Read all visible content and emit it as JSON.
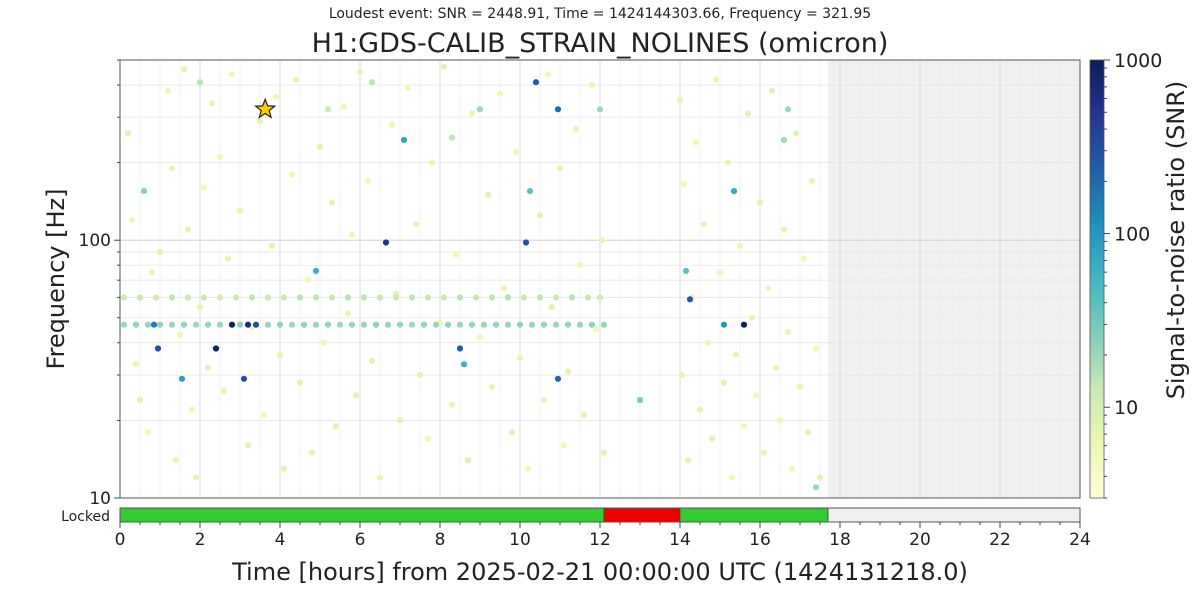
{
  "subtitle": "Loudest event: SNR = 2448.91, Time = 1424144303.66, Frequency = 321.95",
  "title": "H1:GDS-CALIB_STRAIN_NOLINES (omicron)",
  "chart_data": {
    "type": "scatter",
    "xlabel": "Time [hours] from 2025-02-21 00:00:00 UTC (1424131218.0)",
    "ylabel": "Frequency [Hz]",
    "xlim": [
      0,
      24
    ],
    "ylim": [
      10,
      500
    ],
    "y_scale": "log",
    "x_ticks": [
      "0",
      "2",
      "4",
      "6",
      "8",
      "10",
      "12",
      "14",
      "16",
      "18",
      "20",
      "22",
      "24"
    ],
    "y_ticks": [
      "10",
      "100"
    ],
    "grid": true,
    "colorbar": {
      "label": "Signal-to-noise ratio (SNR)",
      "scale": "log",
      "range": [
        3,
        1000
      ],
      "ticks": [
        "10",
        "100",
        "1000"
      ],
      "colors": [
        "#ffffd9",
        "#edf8b1",
        "#c7e9b4",
        "#7fcdbb",
        "#41b6c4",
        "#1d91c0",
        "#225ea8",
        "#253494",
        "#081d58"
      ]
    },
    "no_data_region": [
      17.7,
      24
    ],
    "loudest_event": {
      "x": 3.63,
      "y": 321.95,
      "snr": 2448.91,
      "marker": "star",
      "color": "#ffcc00"
    },
    "points": [
      {
        "x": 0.1,
        "y": 60,
        "snr": 12
      },
      {
        "x": 0.5,
        "y": 60,
        "snr": 13
      },
      {
        "x": 0.9,
        "y": 60,
        "snr": 11
      },
      {
        "x": 1.3,
        "y": 60,
        "snr": 14
      },
      {
        "x": 1.7,
        "y": 60,
        "snr": 12
      },
      {
        "x": 2.1,
        "y": 60,
        "snr": 13
      },
      {
        "x": 2.5,
        "y": 60,
        "snr": 11
      },
      {
        "x": 2.9,
        "y": 60,
        "snr": 12
      },
      {
        "x": 3.3,
        "y": 60,
        "snr": 14
      },
      {
        "x": 3.7,
        "y": 60,
        "snr": 12
      },
      {
        "x": 4.1,
        "y": 60,
        "snr": 13
      },
      {
        "x": 4.5,
        "y": 60,
        "snr": 15
      },
      {
        "x": 4.9,
        "y": 60,
        "snr": 14
      },
      {
        "x": 5.3,
        "y": 60,
        "snr": 13
      },
      {
        "x": 5.7,
        "y": 60,
        "snr": 15
      },
      {
        "x": 6.1,
        "y": 60,
        "snr": 14
      },
      {
        "x": 6.5,
        "y": 60,
        "snr": 13
      },
      {
        "x": 6.9,
        "y": 60,
        "snr": 12
      },
      {
        "x": 7.3,
        "y": 60,
        "snr": 14
      },
      {
        "x": 7.7,
        "y": 60,
        "snr": 13
      },
      {
        "x": 8.1,
        "y": 60,
        "snr": 12
      },
      {
        "x": 8.5,
        "y": 60,
        "snr": 15
      },
      {
        "x": 8.9,
        "y": 60,
        "snr": 13
      },
      {
        "x": 9.3,
        "y": 60,
        "snr": 14
      },
      {
        "x": 9.7,
        "y": 60,
        "snr": 15
      },
      {
        "x": 10.1,
        "y": 60,
        "snr": 13
      },
      {
        "x": 10.5,
        "y": 60,
        "snr": 14
      },
      {
        "x": 10.9,
        "y": 60,
        "snr": 12
      },
      {
        "x": 11.3,
        "y": 60,
        "snr": 15
      },
      {
        "x": 11.7,
        "y": 60,
        "snr": 13
      },
      {
        "x": 12.0,
        "y": 60,
        "snr": 12
      },
      {
        "x": 0.1,
        "y": 47,
        "snr": 20
      },
      {
        "x": 0.4,
        "y": 47,
        "snr": 22
      },
      {
        "x": 0.7,
        "y": 47,
        "snr": 21
      },
      {
        "x": 0.85,
        "y": 47,
        "snr": 150
      },
      {
        "x": 1.0,
        "y": 47,
        "snr": 23
      },
      {
        "x": 1.3,
        "y": 47,
        "snr": 21
      },
      {
        "x": 1.6,
        "y": 47,
        "snr": 22
      },
      {
        "x": 1.9,
        "y": 47,
        "snr": 20
      },
      {
        "x": 2.2,
        "y": 47,
        "snr": 22
      },
      {
        "x": 2.5,
        "y": 47,
        "snr": 21
      },
      {
        "x": 2.8,
        "y": 47,
        "snr": 900
      },
      {
        "x": 3.0,
        "y": 47,
        "snr": 23
      },
      {
        "x": 3.2,
        "y": 47,
        "snr": 600
      },
      {
        "x": 3.4,
        "y": 47,
        "snr": 300
      },
      {
        "x": 3.7,
        "y": 47,
        "snr": 21
      },
      {
        "x": 4.0,
        "y": 47,
        "snr": 22
      },
      {
        "x": 4.3,
        "y": 47,
        "snr": 20
      },
      {
        "x": 4.6,
        "y": 47,
        "snr": 23
      },
      {
        "x": 4.9,
        "y": 47,
        "snr": 21
      },
      {
        "x": 5.2,
        "y": 47,
        "snr": 22
      },
      {
        "x": 5.5,
        "y": 47,
        "snr": 20
      },
      {
        "x": 5.8,
        "y": 47,
        "snr": 22
      },
      {
        "x": 6.1,
        "y": 47,
        "snr": 21
      },
      {
        "x": 6.4,
        "y": 47,
        "snr": 23
      },
      {
        "x": 6.7,
        "y": 47,
        "snr": 21
      },
      {
        "x": 7.0,
        "y": 47,
        "snr": 22
      },
      {
        "x": 7.3,
        "y": 47,
        "snr": 20
      },
      {
        "x": 7.6,
        "y": 47,
        "snr": 22
      },
      {
        "x": 7.9,
        "y": 47,
        "snr": 21
      },
      {
        "x": 8.2,
        "y": 47,
        "snr": 23
      },
      {
        "x": 8.5,
        "y": 47,
        "snr": 21
      },
      {
        "x": 8.8,
        "y": 47,
        "snr": 22
      },
      {
        "x": 9.1,
        "y": 47,
        "snr": 20
      },
      {
        "x": 9.4,
        "y": 47,
        "snr": 22
      },
      {
        "x": 9.7,
        "y": 47,
        "snr": 21
      },
      {
        "x": 10.0,
        "y": 47,
        "snr": 23
      },
      {
        "x": 10.3,
        "y": 47,
        "snr": 21
      },
      {
        "x": 10.6,
        "y": 47,
        "snr": 22
      },
      {
        "x": 10.9,
        "y": 47,
        "snr": 20
      },
      {
        "x": 11.2,
        "y": 47,
        "snr": 22
      },
      {
        "x": 11.5,
        "y": 47,
        "snr": 21
      },
      {
        "x": 11.8,
        "y": 47,
        "snr": 23
      },
      {
        "x": 12.1,
        "y": 47,
        "snr": 21
      },
      {
        "x": 0.6,
        "y": 155,
        "snr": 25
      },
      {
        "x": 0.95,
        "y": 38,
        "snr": 300
      },
      {
        "x": 1.55,
        "y": 29,
        "snr": 90
      },
      {
        "x": 2.4,
        "y": 38,
        "snr": 800
      },
      {
        "x": 3.1,
        "y": 29,
        "snr": 300
      },
      {
        "x": 4.9,
        "y": 76,
        "snr": 60
      },
      {
        "x": 6.65,
        "y": 98,
        "snr": 500
      },
      {
        "x": 7.1,
        "y": 245,
        "snr": 80
      },
      {
        "x": 8.5,
        "y": 38,
        "snr": 250
      },
      {
        "x": 8.6,
        "y": 33,
        "snr": 60
      },
      {
        "x": 10.15,
        "y": 98,
        "snr": 300
      },
      {
        "x": 10.25,
        "y": 155,
        "snr": 40
      },
      {
        "x": 10.4,
        "y": 410,
        "snr": 250
      },
      {
        "x": 10.95,
        "y": 29,
        "snr": 200
      },
      {
        "x": 10.95,
        "y": 322,
        "snr": 200
      },
      {
        "x": 12.0,
        "y": 322,
        "snr": 20
      },
      {
        "x": 14.15,
        "y": 76,
        "snr": 40
      },
      {
        "x": 14.25,
        "y": 59,
        "snr": 250
      },
      {
        "x": 15.1,
        "y": 47,
        "snr": 100
      },
      {
        "x": 15.35,
        "y": 155,
        "snr": 70
      },
      {
        "x": 15.6,
        "y": 47,
        "snr": 900
      },
      {
        "x": 16.6,
        "y": 245,
        "snr": 20
      },
      {
        "x": 17.4,
        "y": 11,
        "snr": 20
      },
      {
        "x": 9.0,
        "y": 322,
        "snr": 20
      },
      {
        "x": 2.0,
        "y": 410,
        "snr": 15
      },
      {
        "x": 5.2,
        "y": 322,
        "snr": 12
      },
      {
        "x": 8.3,
        "y": 250,
        "snr": 14
      },
      {
        "x": 13.0,
        "y": 24,
        "snr": 30
      },
      {
        "x": 16.7,
        "y": 322,
        "snr": 20
      },
      {
        "x": 6.3,
        "y": 410,
        "snr": 14
      },
      {
        "x": 0.2,
        "y": 260,
        "snr": 8
      },
      {
        "x": 0.3,
        "y": 120,
        "snr": 6
      },
      {
        "x": 0.4,
        "y": 33,
        "snr": 7
      },
      {
        "x": 0.5,
        "y": 24,
        "snr": 8
      },
      {
        "x": 0.7,
        "y": 18,
        "snr": 6
      },
      {
        "x": 0.8,
        "y": 75,
        "snr": 7
      },
      {
        "x": 1.0,
        "y": 90,
        "snr": 8
      },
      {
        "x": 1.2,
        "y": 380,
        "snr": 6
      },
      {
        "x": 1.3,
        "y": 190,
        "snr": 7
      },
      {
        "x": 1.4,
        "y": 14,
        "snr": 7
      },
      {
        "x": 1.5,
        "y": 43,
        "snr": 6
      },
      {
        "x": 1.6,
        "y": 460,
        "snr": 8
      },
      {
        "x": 1.7,
        "y": 110,
        "snr": 7
      },
      {
        "x": 1.8,
        "y": 22,
        "snr": 6
      },
      {
        "x": 1.9,
        "y": 12,
        "snr": 8
      },
      {
        "x": 2.0,
        "y": 55,
        "snr": 7
      },
      {
        "x": 2.1,
        "y": 160,
        "snr": 6
      },
      {
        "x": 2.2,
        "y": 32,
        "snr": 8
      },
      {
        "x": 2.3,
        "y": 340,
        "snr": 7
      },
      {
        "x": 2.5,
        "y": 210,
        "snr": 6
      },
      {
        "x": 2.6,
        "y": 26,
        "snr": 7
      },
      {
        "x": 2.7,
        "y": 85,
        "snr": 8
      },
      {
        "x": 2.8,
        "y": 440,
        "snr": 6
      },
      {
        "x": 3.0,
        "y": 130,
        "snr": 7
      },
      {
        "x": 3.2,
        "y": 16,
        "snr": 8
      },
      {
        "x": 3.3,
        "y": 46,
        "snr": 6
      },
      {
        "x": 3.5,
        "y": 290,
        "snr": 7
      },
      {
        "x": 3.6,
        "y": 21,
        "snr": 6
      },
      {
        "x": 3.8,
        "y": 95,
        "snr": 8
      },
      {
        "x": 3.9,
        "y": 360,
        "snr": 6
      },
      {
        "x": 4.0,
        "y": 36,
        "snr": 7
      },
      {
        "x": 4.1,
        "y": 13,
        "snr": 8
      },
      {
        "x": 4.3,
        "y": 180,
        "snr": 6
      },
      {
        "x": 4.4,
        "y": 420,
        "snr": 7
      },
      {
        "x": 4.5,
        "y": 28,
        "snr": 8
      },
      {
        "x": 4.7,
        "y": 70,
        "snr": 6
      },
      {
        "x": 4.8,
        "y": 15,
        "snr": 7
      },
      {
        "x": 5.0,
        "y": 230,
        "snr": 8
      },
      {
        "x": 5.1,
        "y": 40,
        "snr": 6
      },
      {
        "x": 5.3,
        "y": 140,
        "snr": 7
      },
      {
        "x": 5.4,
        "y": 19,
        "snr": 8
      },
      {
        "x": 5.6,
        "y": 330,
        "snr": 6
      },
      {
        "x": 5.7,
        "y": 52,
        "snr": 7
      },
      {
        "x": 5.8,
        "y": 105,
        "snr": 6
      },
      {
        "x": 5.9,
        "y": 25,
        "snr": 8
      },
      {
        "x": 6.0,
        "y": 450,
        "snr": 7
      },
      {
        "x": 6.2,
        "y": 170,
        "snr": 6
      },
      {
        "x": 6.3,
        "y": 34,
        "snr": 8
      },
      {
        "x": 6.5,
        "y": 12,
        "snr": 7
      },
      {
        "x": 6.8,
        "y": 280,
        "snr": 6
      },
      {
        "x": 6.9,
        "y": 62,
        "snr": 7
      },
      {
        "x": 7.0,
        "y": 20,
        "snr": 8
      },
      {
        "x": 7.2,
        "y": 390,
        "snr": 6
      },
      {
        "x": 7.4,
        "y": 115,
        "snr": 7
      },
      {
        "x": 7.5,
        "y": 30,
        "snr": 8
      },
      {
        "x": 7.7,
        "y": 17,
        "snr": 6
      },
      {
        "x": 7.8,
        "y": 200,
        "snr": 7
      },
      {
        "x": 8.0,
        "y": 48,
        "snr": 6
      },
      {
        "x": 8.1,
        "y": 470,
        "snr": 8
      },
      {
        "x": 8.3,
        "y": 23,
        "snr": 7
      },
      {
        "x": 8.4,
        "y": 88,
        "snr": 6
      },
      {
        "x": 8.7,
        "y": 14,
        "snr": 8
      },
      {
        "x": 8.8,
        "y": 310,
        "snr": 7
      },
      {
        "x": 9.0,
        "y": 42,
        "snr": 6
      },
      {
        "x": 9.2,
        "y": 150,
        "snr": 8
      },
      {
        "x": 9.3,
        "y": 27,
        "snr": 7
      },
      {
        "x": 9.5,
        "y": 370,
        "snr": 6
      },
      {
        "x": 9.6,
        "y": 65,
        "snr": 7
      },
      {
        "x": 9.8,
        "y": 18,
        "snr": 8
      },
      {
        "x": 9.9,
        "y": 220,
        "snr": 6
      },
      {
        "x": 10.0,
        "y": 35,
        "snr": 7
      },
      {
        "x": 10.2,
        "y": 13,
        "snr": 6
      },
      {
        "x": 10.5,
        "y": 125,
        "snr": 8
      },
      {
        "x": 10.6,
        "y": 24,
        "snr": 7
      },
      {
        "x": 10.7,
        "y": 440,
        "snr": 6
      },
      {
        "x": 10.8,
        "y": 55,
        "snr": 8
      },
      {
        "x": 11.0,
        "y": 190,
        "snr": 7
      },
      {
        "x": 11.1,
        "y": 16,
        "snr": 6
      },
      {
        "x": 11.2,
        "y": 31,
        "snr": 8
      },
      {
        "x": 11.4,
        "y": 270,
        "snr": 7
      },
      {
        "x": 11.5,
        "y": 80,
        "snr": 6
      },
      {
        "x": 11.6,
        "y": 21,
        "snr": 8
      },
      {
        "x": 11.8,
        "y": 400,
        "snr": 7
      },
      {
        "x": 11.9,
        "y": 45,
        "snr": 6
      },
      {
        "x": 12.1,
        "y": 15,
        "snr": 8
      },
      {
        "x": 12.05,
        "y": 100,
        "snr": 7
      },
      {
        "x": 14.0,
        "y": 350,
        "snr": 8
      },
      {
        "x": 14.05,
        "y": 30,
        "snr": 7
      },
      {
        "x": 14.1,
        "y": 165,
        "snr": 6
      },
      {
        "x": 14.2,
        "y": 14,
        "snr": 8
      },
      {
        "x": 14.3,
        "y": 60,
        "snr": 7
      },
      {
        "x": 14.4,
        "y": 240,
        "snr": 6
      },
      {
        "x": 14.5,
        "y": 22,
        "snr": 8
      },
      {
        "x": 14.6,
        "y": 115,
        "snr": 7
      },
      {
        "x": 14.7,
        "y": 40,
        "snr": 6
      },
      {
        "x": 14.8,
        "y": 17,
        "snr": 8
      },
      {
        "x": 14.9,
        "y": 420,
        "snr": 7
      },
      {
        "x": 15.0,
        "y": 75,
        "snr": 6
      },
      {
        "x": 15.1,
        "y": 28,
        "snr": 8
      },
      {
        "x": 15.2,
        "y": 200,
        "snr": 7
      },
      {
        "x": 15.3,
        "y": 12,
        "snr": 6
      },
      {
        "x": 15.4,
        "y": 36,
        "snr": 8
      },
      {
        "x": 15.5,
        "y": 95,
        "snr": 7
      },
      {
        "x": 15.6,
        "y": 19,
        "snr": 6
      },
      {
        "x": 15.7,
        "y": 310,
        "snr": 8
      },
      {
        "x": 15.8,
        "y": 50,
        "snr": 7
      },
      {
        "x": 15.9,
        "y": 25,
        "snr": 6
      },
      {
        "x": 16.0,
        "y": 140,
        "snr": 8
      },
      {
        "x": 16.1,
        "y": 15,
        "snr": 7
      },
      {
        "x": 16.2,
        "y": 65,
        "snr": 6
      },
      {
        "x": 16.3,
        "y": 380,
        "snr": 8
      },
      {
        "x": 16.4,
        "y": 32,
        "snr": 7
      },
      {
        "x": 16.5,
        "y": 20,
        "snr": 6
      },
      {
        "x": 16.6,
        "y": 110,
        "snr": 8
      },
      {
        "x": 16.7,
        "y": 44,
        "snr": 7
      },
      {
        "x": 16.8,
        "y": 13,
        "snr": 6
      },
      {
        "x": 16.9,
        "y": 260,
        "snr": 8
      },
      {
        "x": 17.0,
        "y": 27,
        "snr": 7
      },
      {
        "x": 17.1,
        "y": 85,
        "snr": 6
      },
      {
        "x": 17.2,
        "y": 18,
        "snr": 8
      },
      {
        "x": 17.3,
        "y": 170,
        "snr": 7
      },
      {
        "x": 17.4,
        "y": 38,
        "snr": 6
      },
      {
        "x": 17.5,
        "y": 12,
        "snr": 8
      }
    ],
    "state_bar": {
      "label": "Locked",
      "segments": [
        {
          "start": 0,
          "end": 12.1,
          "color": "#33cc33"
        },
        {
          "start": 12.1,
          "end": 14.0,
          "color": "#ee0000"
        },
        {
          "start": 14.0,
          "end": 17.7,
          "color": "#33cc33"
        },
        {
          "start": 17.7,
          "end": 24,
          "color": "#f0f0f0"
        }
      ]
    }
  }
}
